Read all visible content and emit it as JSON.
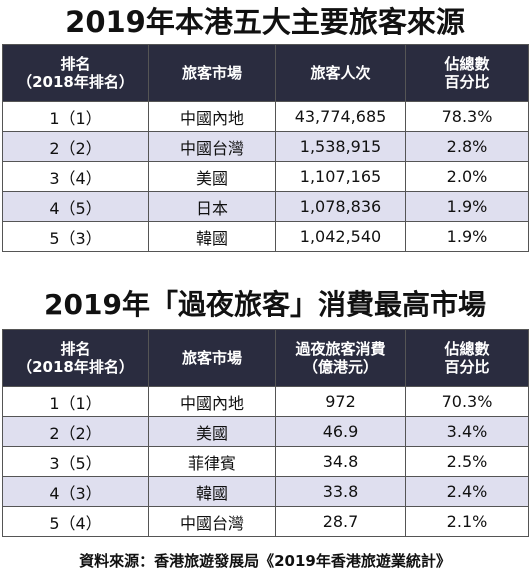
{
  "table1": {
    "title": "2019年本港五大主要旅客來源",
    "headers": {
      "rank_line1": "排名",
      "rank_line2": "（2018年排名）",
      "market": "旅客市場",
      "count": "旅客人次",
      "pct_line1": "佔總數",
      "pct_line2": "百分比"
    },
    "rows": [
      {
        "rank": "1（1）",
        "market": "中國內地",
        "value": "43,774,685",
        "pct": "78.3%"
      },
      {
        "rank": "2（2）",
        "market": "中國台灣",
        "value": "1,538,915",
        "pct": "2.8%"
      },
      {
        "rank": "3（4）",
        "market": "美國",
        "value": "1,107,165",
        "pct": "2.0%"
      },
      {
        "rank": "4（5）",
        "market": "日本",
        "value": "1,078,836",
        "pct": "1.9%"
      },
      {
        "rank": "5（3）",
        "market": "韓國",
        "value": "1,042,540",
        "pct": "1.9%"
      }
    ]
  },
  "table2": {
    "title": "2019年「過夜旅客」消費最高市場",
    "headers": {
      "rank_line1": "排名",
      "rank_line2": "（2018年排名）",
      "market": "旅客市場",
      "spend_line1": "過夜旅客消費",
      "spend_line2": "（億港元）",
      "pct_line1": "佔總數",
      "pct_line2": "百分比"
    },
    "rows": [
      {
        "rank": "1（1）",
        "market": "中國內地",
        "value": "972",
        "pct": "70.3%"
      },
      {
        "rank": "2（2）",
        "market": "美國",
        "value": "46.9",
        "pct": "3.4%"
      },
      {
        "rank": "3（5）",
        "market": "菲律賓",
        "value": "34.8",
        "pct": "2.5%"
      },
      {
        "rank": "4（3）",
        "market": "韓國",
        "value": "33.8",
        "pct": "2.4%"
      },
      {
        "rank": "5（4）",
        "market": "中國台灣",
        "value": "28.7",
        "pct": "2.1%"
      }
    ]
  },
  "source": "資料來源：香港旅遊發展局《2019年香港旅遊業統計》",
  "colors": {
    "header_bg": "#2a2c3f",
    "row_alt_bg": "#dfdfef"
  }
}
